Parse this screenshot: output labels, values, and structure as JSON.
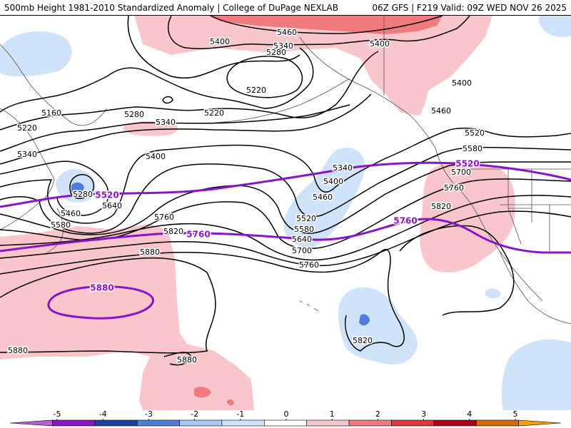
{
  "header": {
    "title_left": "500mb Height 1981-2010 Standardized Anomaly | College of DuPage NEXLAB",
    "title_right": "06Z GFS | F219 Valid: 09Z WED NOV 26 2025"
  },
  "colors": {
    "contour": "#000000",
    "highlight_contour": "#8a14c8",
    "coast": "#555555",
    "anom_pos1": "#f9c7cb",
    "anom_pos2": "#f07a7e",
    "anom_neg1": "#cfe4fa",
    "anom_neg2": "#4f7bdb"
  },
  "contour_labels": [
    {
      "id": "c5460a",
      "text": "5460"
    },
    {
      "id": "c5400a",
      "text": "5400"
    },
    {
      "id": "c5340a",
      "text": "5340"
    },
    {
      "id": "c5280a",
      "text": "5280"
    },
    {
      "id": "c5400b",
      "text": "5400"
    },
    {
      "id": "c5220a",
      "text": "5220"
    },
    {
      "id": "c5220b",
      "text": "5220"
    },
    {
      "id": "c5160a",
      "text": "5160"
    },
    {
      "id": "c5220c",
      "text": "5220"
    },
    {
      "id": "c5280b",
      "text": "5280"
    },
    {
      "id": "c5340b",
      "text": "5340"
    },
    {
      "id": "c5340c",
      "text": "5340"
    },
    {
      "id": "c5400c",
      "text": "5400"
    },
    {
      "id": "c5400d",
      "text": "5400"
    },
    {
      "id": "c5460b",
      "text": "5460"
    },
    {
      "id": "c5520a",
      "text": "5520"
    },
    {
      "id": "c5580a",
      "text": "5580"
    },
    {
      "id": "c5280c",
      "text": "5280"
    },
    {
      "id": "c5460c",
      "text": "5460"
    },
    {
      "id": "c5580b",
      "text": "5580"
    },
    {
      "id": "c5640a",
      "text": "5640"
    },
    {
      "id": "c5760a",
      "text": "5760"
    },
    {
      "id": "c5820a",
      "text": "5820"
    },
    {
      "id": "c5340d",
      "text": "5340"
    },
    {
      "id": "c5400e",
      "text": "5400"
    },
    {
      "id": "c5460d",
      "text": "5460"
    },
    {
      "id": "c5520b",
      "text": "5520"
    },
    {
      "id": "c5580c",
      "text": "5580"
    },
    {
      "id": "c5640b",
      "text": "5640"
    },
    {
      "id": "c5700a",
      "text": "5700"
    },
    {
      "id": "c5760b",
      "text": "5760"
    },
    {
      "id": "c5880a",
      "text": "5880"
    },
    {
      "id": "c5700b",
      "text": "5700"
    },
    {
      "id": "c5760c",
      "text": "5760"
    },
    {
      "id": "c5820b",
      "text": "5820"
    },
    {
      "id": "c5820c",
      "text": "5820"
    },
    {
      "id": "c5880b",
      "text": "5880"
    },
    {
      "id": "c5880c",
      "text": "5880"
    }
  ],
  "highlight_labels": [
    {
      "id": "h5520a",
      "text": "5520"
    },
    {
      "id": "h5520b",
      "text": "5520"
    },
    {
      "id": "h5760a",
      "text": "5760"
    },
    {
      "id": "h5760b",
      "text": "5760"
    },
    {
      "id": "h5880a",
      "text": "5880"
    }
  ],
  "colorbar": {
    "ticks": [
      "-5",
      "-4",
      "-3",
      "-2",
      "-1",
      "0",
      "1",
      "2",
      "3",
      "4",
      "5"
    ],
    "colors": [
      "#b85fd6",
      "#8a14c8",
      "#1d3fa8",
      "#4f7bdb",
      "#a7c9f2",
      "#cfe4fa",
      "#ffffff",
      "#f9c7cb",
      "#f07a7e",
      "#d93a3a",
      "#a8001a",
      "#d56a00",
      "#f5a300"
    ]
  }
}
